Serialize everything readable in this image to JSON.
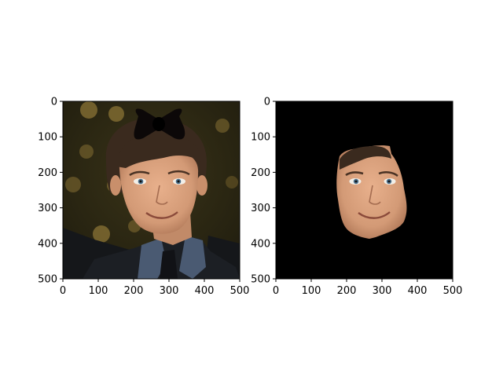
{
  "figure": {
    "background": "#ffffff"
  },
  "chart_data": [
    {
      "type": "image",
      "panel": "left",
      "content": "photo of a young man with dark hair wearing a dark suit and blue shirt, a black bow shape overlaid on top of his head",
      "xlim": [
        0,
        500
      ],
      "ylim": [
        500,
        0
      ],
      "xticks": [
        0,
        100,
        200,
        300,
        400,
        500
      ],
      "yticks": [
        0,
        100,
        200,
        300,
        400,
        500
      ],
      "colors": {
        "background": "#2f2a14",
        "bokeh": "#8a7335",
        "hair": "#3a2a1e",
        "skin": "#d9a07c",
        "suit": "#1c1f24",
        "shirt": "#4a5a72",
        "bow": "#0c0808"
      }
    },
    {
      "type": "image",
      "panel": "right",
      "content": "segmented face of the same man on a black background",
      "xlim": [
        0,
        500
      ],
      "ylim": [
        500,
        0
      ],
      "xticks": [
        0,
        100,
        200,
        300,
        400,
        500
      ],
      "yticks": [
        0,
        100,
        200,
        300,
        400,
        500
      ],
      "colors": {
        "background": "#000000",
        "skin": "#d9a07c",
        "hair": "#3a2a1e"
      }
    }
  ]
}
